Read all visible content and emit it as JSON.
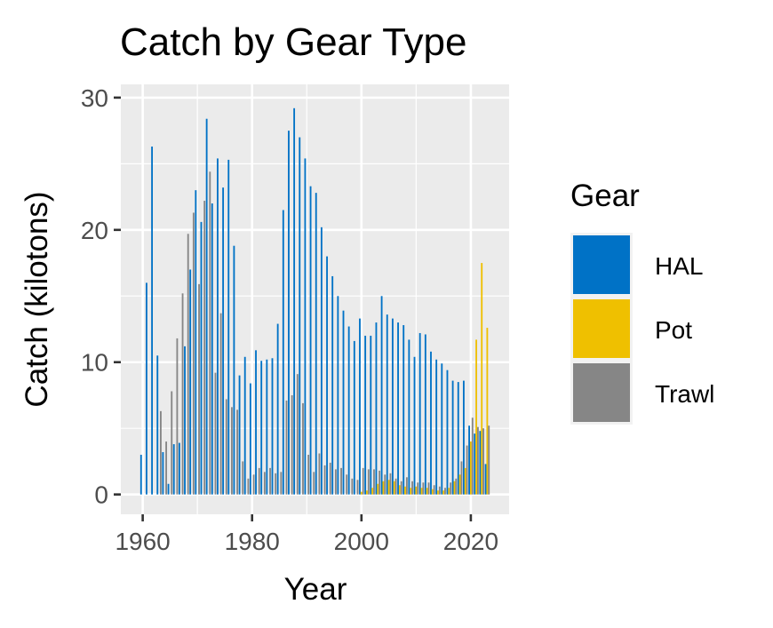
{
  "chart_data": {
    "type": "bar",
    "title": "Catch by Gear Type",
    "xlabel": "Year",
    "ylabel": "Catch (kilotons)",
    "xlim": [
      1956,
      2027
    ],
    "ylim": [
      -1.5,
      31
    ],
    "x_ticks": [
      1960,
      1980,
      2000,
      2020
    ],
    "y_ticks": [
      0,
      10,
      20,
      30
    ],
    "grid": true,
    "legend_title": "Gear",
    "legend_position": "right",
    "series": [
      {
        "name": "HAL",
        "color": "#0072C6",
        "points": [
          [
            1960,
            3.0
          ],
          [
            1961,
            16.0
          ],
          [
            1962,
            26.3
          ],
          [
            1963,
            10.5
          ],
          [
            1964,
            3.2
          ],
          [
            1965,
            0.8
          ],
          [
            1966,
            3.8
          ],
          [
            1967,
            3.9
          ],
          [
            1968,
            11.2
          ],
          [
            1969,
            17.0
          ],
          [
            1970,
            23.0
          ],
          [
            1971,
            20.6
          ],
          [
            1972,
            28.4
          ],
          [
            1973,
            22.0
          ],
          [
            1974,
            25.4
          ],
          [
            1975,
            23.2
          ],
          [
            1976,
            25.3
          ],
          [
            1977,
            18.8
          ],
          [
            1978,
            9.0
          ],
          [
            1979,
            10.4
          ],
          [
            1980,
            8.4
          ],
          [
            1981,
            10.9
          ],
          [
            1982,
            10.1
          ],
          [
            1983,
            10.2
          ],
          [
            1984,
            10.3
          ],
          [
            1985,
            12.9
          ],
          [
            1986,
            21.5
          ],
          [
            1987,
            27.5
          ],
          [
            1988,
            29.2
          ],
          [
            1989,
            27.0
          ],
          [
            1990,
            25.4
          ],
          [
            1991,
            23.3
          ],
          [
            1992,
            22.8
          ],
          [
            1993,
            20.2
          ],
          [
            1994,
            18.0
          ],
          [
            1995,
            16.5
          ],
          [
            1996,
            15.0
          ],
          [
            1997,
            13.9
          ],
          [
            1998,
            12.7
          ],
          [
            1999,
            11.6
          ],
          [
            2000,
            13.3
          ],
          [
            2001,
            12.0
          ],
          [
            2002,
            12.0
          ],
          [
            2003,
            13.0
          ],
          [
            2004,
            15.0
          ],
          [
            2005,
            13.6
          ],
          [
            2006,
            13.3
          ],
          [
            2007,
            13.0
          ],
          [
            2008,
            12.8
          ],
          [
            2009,
            11.7
          ],
          [
            2010,
            10.4
          ],
          [
            2011,
            12.2
          ],
          [
            2012,
            12.1
          ],
          [
            2013,
            10.8
          ],
          [
            2014,
            10.2
          ],
          [
            2015,
            9.9
          ],
          [
            2016,
            9.4
          ],
          [
            2017,
            8.6
          ],
          [
            2018,
            8.5
          ],
          [
            2019,
            8.6
          ],
          [
            2020,
            5.2
          ],
          [
            2021,
            4.6
          ],
          [
            2022,
            4.8
          ],
          [
            2023,
            2.3
          ]
        ]
      },
      {
        "name": "Pot",
        "color": "#EFC000",
        "points": [
          [
            2000,
            0.2
          ],
          [
            2001,
            0.3
          ],
          [
            2002,
            0.5
          ],
          [
            2003,
            0.8
          ],
          [
            2004,
            1.0
          ],
          [
            2005,
            1.1
          ],
          [
            2006,
            1.0
          ],
          [
            2007,
            0.7
          ],
          [
            2008,
            0.6
          ],
          [
            2009,
            0.5
          ],
          [
            2010,
            0.6
          ],
          [
            2011,
            0.5
          ],
          [
            2012,
            0.5
          ],
          [
            2013,
            0.4
          ],
          [
            2014,
            0.3
          ],
          [
            2015,
            0.3
          ],
          [
            2016,
            0.5
          ],
          [
            2017,
            1.0
          ],
          [
            2018,
            1.5
          ],
          [
            2019,
            2.0
          ],
          [
            2020,
            4.0
          ],
          [
            2021,
            11.7
          ],
          [
            2022,
            17.5
          ],
          [
            2023,
            12.6
          ]
        ]
      },
      {
        "name": "Trawl",
        "color": "#868686",
        "points": [
          [
            1963,
            6.3
          ],
          [
            1964,
            4.0
          ],
          [
            1965,
            7.8
          ],
          [
            1966,
            11.8
          ],
          [
            1967,
            15.2
          ],
          [
            1968,
            19.7
          ],
          [
            1969,
            21.3
          ],
          [
            1970,
            15.9
          ],
          [
            1971,
            22.2
          ],
          [
            1972,
            24.4
          ],
          [
            1973,
            9.2
          ],
          [
            1974,
            13.7
          ],
          [
            1975,
            7.2
          ],
          [
            1976,
            6.6
          ],
          [
            1977,
            6.4
          ],
          [
            1978,
            2.5
          ],
          [
            1979,
            1.2
          ],
          [
            1980,
            1.5
          ],
          [
            1981,
            2.0
          ],
          [
            1982,
            1.7
          ],
          [
            1983,
            2.0
          ],
          [
            1984,
            1.6
          ],
          [
            1985,
            1.7
          ],
          [
            1986,
            7.1
          ],
          [
            1987,
            7.5
          ],
          [
            1988,
            9.1
          ],
          [
            1989,
            6.9
          ],
          [
            1990,
            3.0
          ],
          [
            1991,
            1.7
          ],
          [
            1992,
            3.1
          ],
          [
            1993,
            2.2
          ],
          [
            1994,
            2.4
          ],
          [
            1995,
            1.9
          ],
          [
            1996,
            2.0
          ],
          [
            1997,
            1.5
          ],
          [
            1998,
            1.2
          ],
          [
            1999,
            1.1
          ],
          [
            2000,
            2.0
          ],
          [
            2001,
            1.9
          ],
          [
            2002,
            1.9
          ],
          [
            2003,
            1.8
          ],
          [
            2004,
            1.5
          ],
          [
            2005,
            1.6
          ],
          [
            2006,
            1.2
          ],
          [
            2007,
            1.0
          ],
          [
            2008,
            1.3
          ],
          [
            2009,
            1.0
          ],
          [
            2010,
            0.9
          ],
          [
            2011,
            0.9
          ],
          [
            2012,
            0.9
          ],
          [
            2013,
            0.7
          ],
          [
            2014,
            0.6
          ],
          [
            2015,
            0.5
          ],
          [
            2016,
            0.9
          ],
          [
            2017,
            1.2
          ],
          [
            2018,
            2.5
          ],
          [
            2019,
            3.7
          ],
          [
            2020,
            5.8
          ],
          [
            2021,
            5.1
          ],
          [
            2022,
            5.0
          ],
          [
            2023,
            5.2
          ]
        ]
      }
    ]
  }
}
